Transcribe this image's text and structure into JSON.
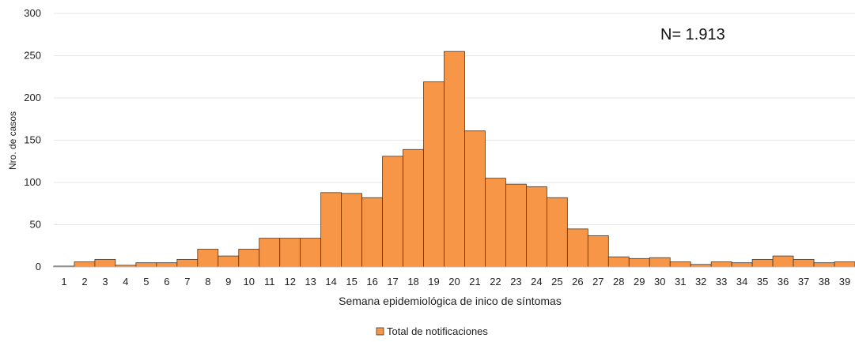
{
  "chart_data": {
    "type": "bar",
    "categories": [
      "1",
      "2",
      "3",
      "4",
      "5",
      "6",
      "7",
      "8",
      "9",
      "10",
      "11",
      "12",
      "13",
      "14",
      "15",
      "16",
      "17",
      "18",
      "19",
      "20",
      "21",
      "22",
      "23",
      "24",
      "25",
      "26",
      "27",
      "28",
      "29",
      "30",
      "31",
      "32",
      "33",
      "34",
      "35",
      "36",
      "37",
      "38",
      "39"
    ],
    "series": [
      {
        "name": "Total de notificaciones",
        "values": [
          1,
          6,
          9,
          2,
          5,
          5,
          9,
          21,
          13,
          21,
          34,
          34,
          34,
          88,
          87,
          82,
          131,
          139,
          219,
          255,
          161,
          105,
          98,
          95,
          82,
          45,
          37,
          12,
          10,
          11,
          6,
          3,
          6,
          5,
          9,
          13,
          9,
          5,
          6
        ]
      }
    ],
    "xlabel": "Semana epidemiológica de inico de síntomas",
    "ylabel": "Nro. de casos",
    "ylim": [
      0,
      300
    ],
    "yticks": [
      0,
      50,
      100,
      150,
      200,
      250,
      300
    ],
    "annotation": "N= 1.913",
    "grid": true,
    "legend": "bottom-center",
    "colors": {
      "bar": "#F79646",
      "bar_stroke": "#3a3a3a",
      "grid": "#e6e6e6",
      "axis": "#bfbfbf"
    }
  }
}
